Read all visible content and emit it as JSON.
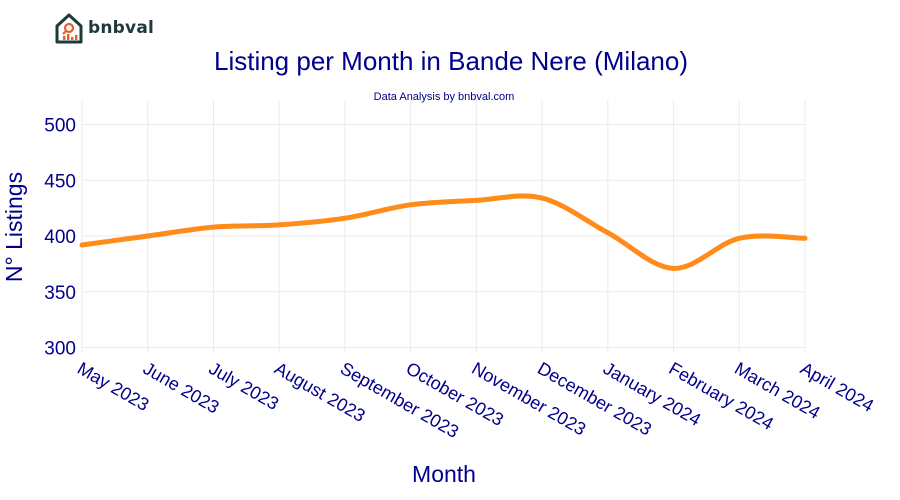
{
  "brand": {
    "name": "bnbval"
  },
  "colors": {
    "line": "#ff8c1a",
    "text": "#00008b",
    "grid": "#ebebeb",
    "logo": "#1e3a3a",
    "logo_accent": "#e8612c"
  },
  "chart_data": {
    "type": "line",
    "title": "Listing per Month in Bande Nere (Milano)",
    "subtitle": "Data Analysis by bnbval.com",
    "xlabel": "Month",
    "ylabel": "N° Listings",
    "categories": [
      "May 2023",
      "June 2023",
      "July 2023",
      "August 2023",
      "September 2023",
      "October 2023",
      "November 2023",
      "December 2023",
      "January 2024",
      "February 2024",
      "March 2024",
      "April 2024"
    ],
    "series": [
      {
        "values": [
          392,
          400,
          408,
          410,
          416,
          428,
          432,
          434,
          403,
          371,
          398,
          398
        ]
      }
    ],
    "ylim": [
      296,
      522
    ],
    "yticks": [
      300,
      350,
      400,
      450,
      500
    ],
    "grid": true,
    "legend": "none"
  }
}
